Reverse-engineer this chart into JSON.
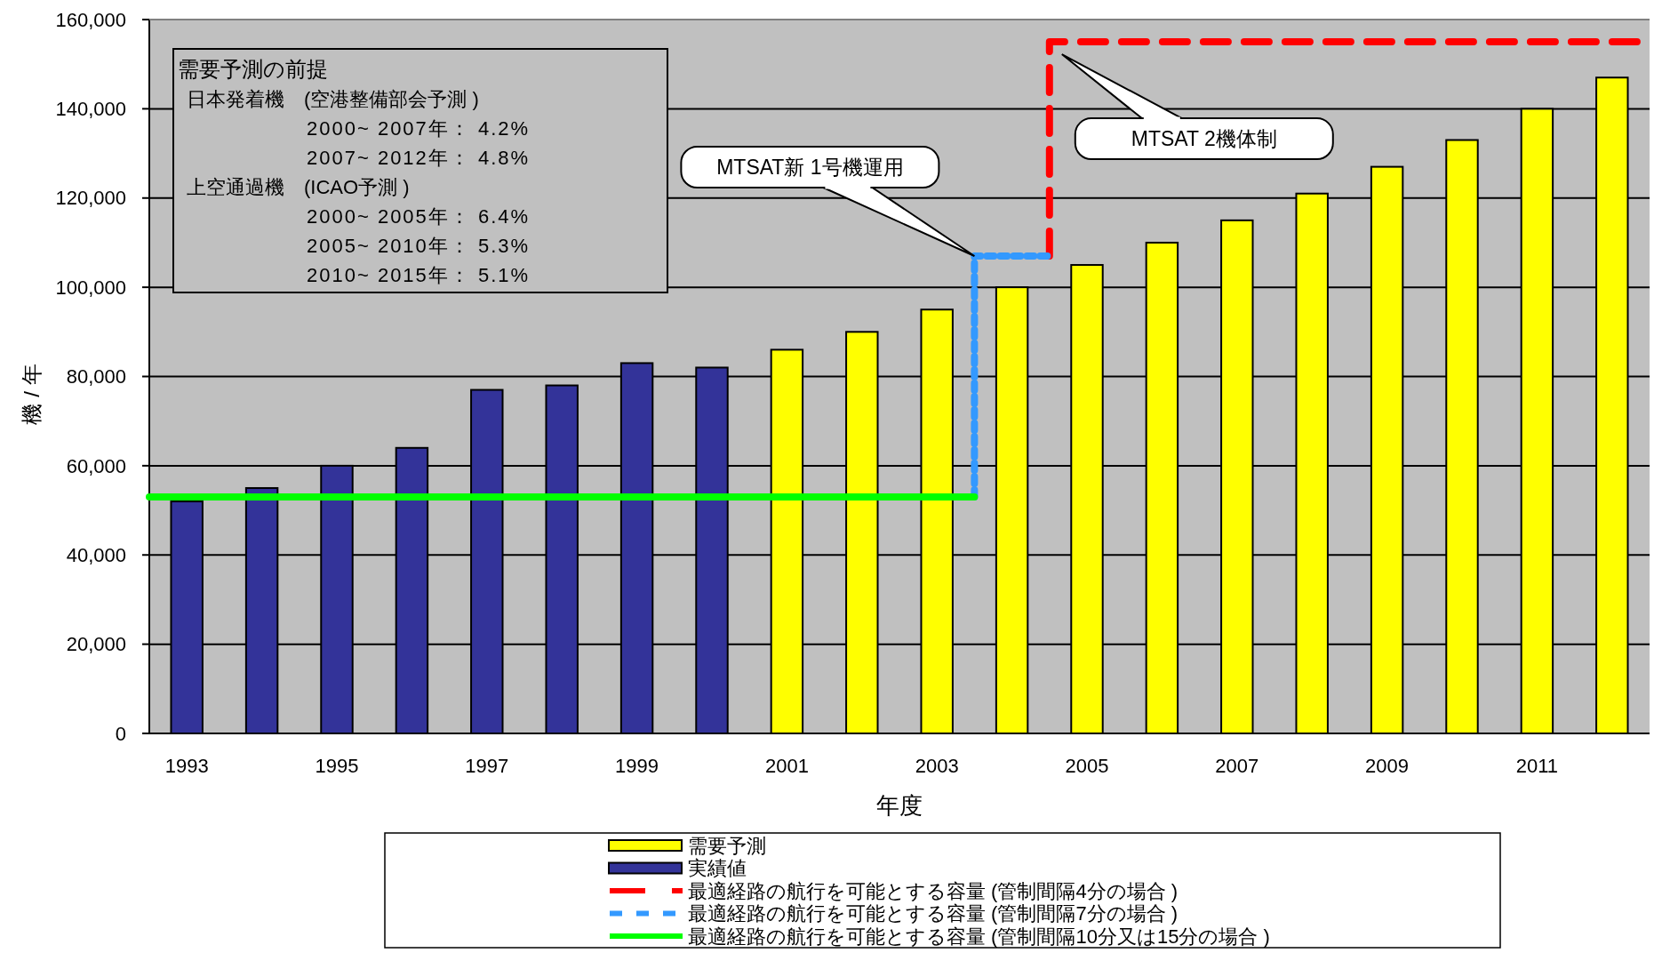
{
  "chart_data": {
    "type": "bar",
    "xlabel": "年度",
    "ylabel": "機 / 年",
    "x": [
      1993,
      1994,
      1995,
      1996,
      1997,
      1998,
      1999,
      2000,
      2001,
      2002,
      2003,
      2004,
      2005,
      2006,
      2007,
      2008,
      2009,
      2010,
      2011,
      2012
    ],
    "xlim": [
      1992.5,
      2012.5
    ],
    "xticks": [
      1993,
      1995,
      1997,
      1999,
      2001,
      2003,
      2005,
      2007,
      2009,
      2011
    ],
    "ylim": [
      0,
      160000
    ],
    "yticks": [
      {
        "value": 0,
        "label": "0"
      },
      {
        "value": 20000,
        "label": "20,000"
      },
      {
        "value": 40000,
        "label": "40,000"
      },
      {
        "value": 60000,
        "label": "60,000"
      },
      {
        "value": 80000,
        "label": "80,000"
      },
      {
        "value": 100000,
        "label": "100,000"
      },
      {
        "value": 120000,
        "label": "120,000"
      },
      {
        "value": 140000,
        "label": "140,000"
      },
      {
        "value": 160000,
        "label": "160,000"
      }
    ],
    "grid": "y",
    "legend": "bottom",
    "series": [
      {
        "name": "需要予測",
        "color": "#ffff00",
        "values": [
          null,
          null,
          null,
          null,
          null,
          null,
          null,
          null,
          86000,
          90000,
          95000,
          100000,
          105000,
          110000,
          115000,
          121000,
          127000,
          133000,
          140000,
          147000
        ]
      },
      {
        "name": "実績値",
        "color": "#333399",
        "values": [
          52000,
          55000,
          60000,
          64000,
          77000,
          78000,
          83000,
          82000,
          null,
          null,
          null,
          null,
          null,
          null,
          null,
          null,
          null,
          null,
          null,
          null
        ]
      },
      {
        "name": "最適経路の航行を可能とする容量 (管制間隔4分の場合 )",
        "type": "line",
        "line_style": "dashed",
        "color": "#ff0000",
        "x": [
          2004.5,
          2004.5,
          2012.5
        ],
        "values": [
          107000,
          155000,
          155000
        ]
      },
      {
        "name": "最適経路の航行を可能とする容量 (管制間隔7分の場合 )",
        "type": "line",
        "line_style": "dotted",
        "color": "#3399ff",
        "x": [
          2003.5,
          2003.5,
          2004.5
        ],
        "values": [
          53000,
          107000,
          107000
        ]
      },
      {
        "name": "最適経路の航行を可能とする容量 (管制間隔10分又は15分の場合 )",
        "type": "line",
        "line_style": "solid",
        "color": "#00ff00",
        "x": [
          1992.5,
          2003.5
        ],
        "values": [
          53000,
          53000
        ]
      }
    ],
    "annotations": [
      "需要予測の前提",
      "日本発着機　(空港整備部会予測 )",
      "2000~ 2007年： 4.2%",
      "2007~ 2012年： 4.8%",
      "上空通過機　(ICAO予測 )",
      "2000~ 2005年： 6.4%",
      "2005~ 2010年： 5.3%",
      "2010~ 2015年： 5.1%",
      {
        "text": "MTSAT新 1号機運用",
        "x": 2003.5,
        "y": 107000
      },
      "MTSAT 2機体制"
    ]
  }
}
